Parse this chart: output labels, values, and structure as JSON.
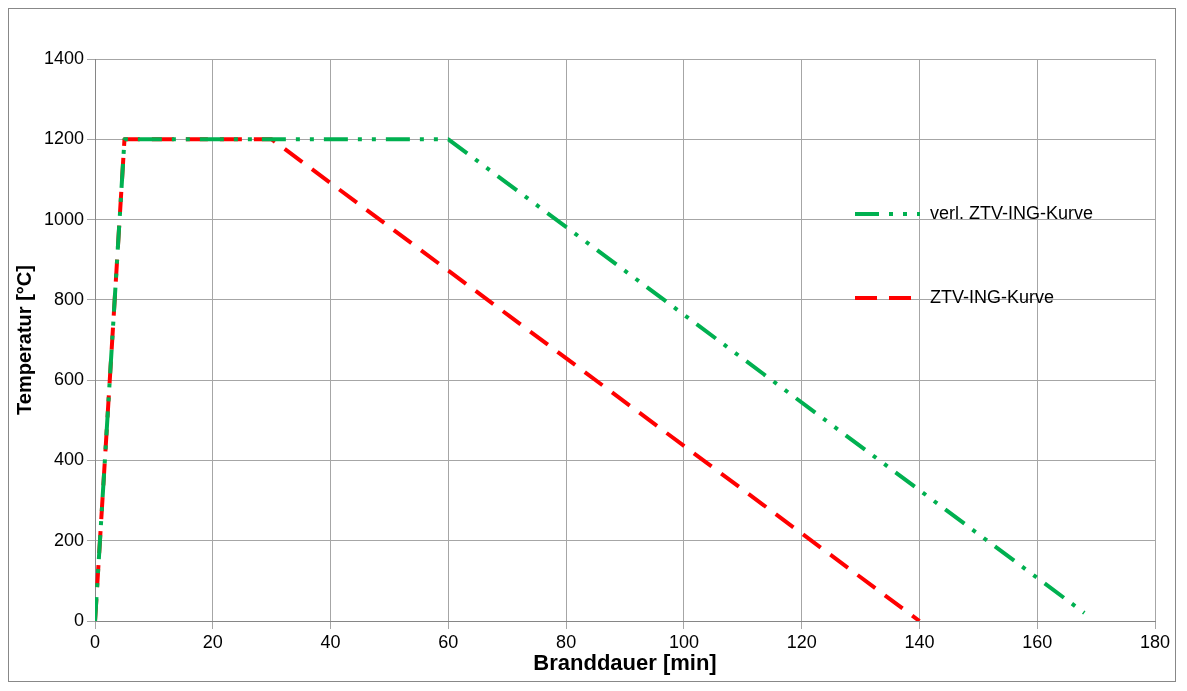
{
  "chart_data": {
    "type": "line",
    "xlabel": "Branddauer [min]",
    "ylabel": "Temperatur [°C]",
    "xlim": [
      0,
      180
    ],
    "xticks": [
      0,
      20,
      40,
      60,
      80,
      100,
      120,
      140,
      160,
      180
    ],
    "ylim": [
      0,
      1400
    ],
    "yticks": [
      0,
      200,
      400,
      600,
      800,
      1000,
      1200,
      1400
    ],
    "grid": true,
    "legend": "right",
    "marker": "none",
    "series": [
      {
        "name": "verl. ZTV-ING-Kurve",
        "color": "#00b050",
        "x": [
          0,
          5,
          60,
          168
        ],
        "values": [
          0,
          1200,
          1200,
          20
        ],
        "line_style": "dashdotdot"
      },
      {
        "name": "ZTV-ING-Kurve",
        "color": "#ff0000",
        "x": [
          0,
          5,
          30,
          140
        ],
        "values": [
          0,
          1200,
          1200,
          0
        ],
        "line_style": "dashed"
      }
    ]
  }
}
